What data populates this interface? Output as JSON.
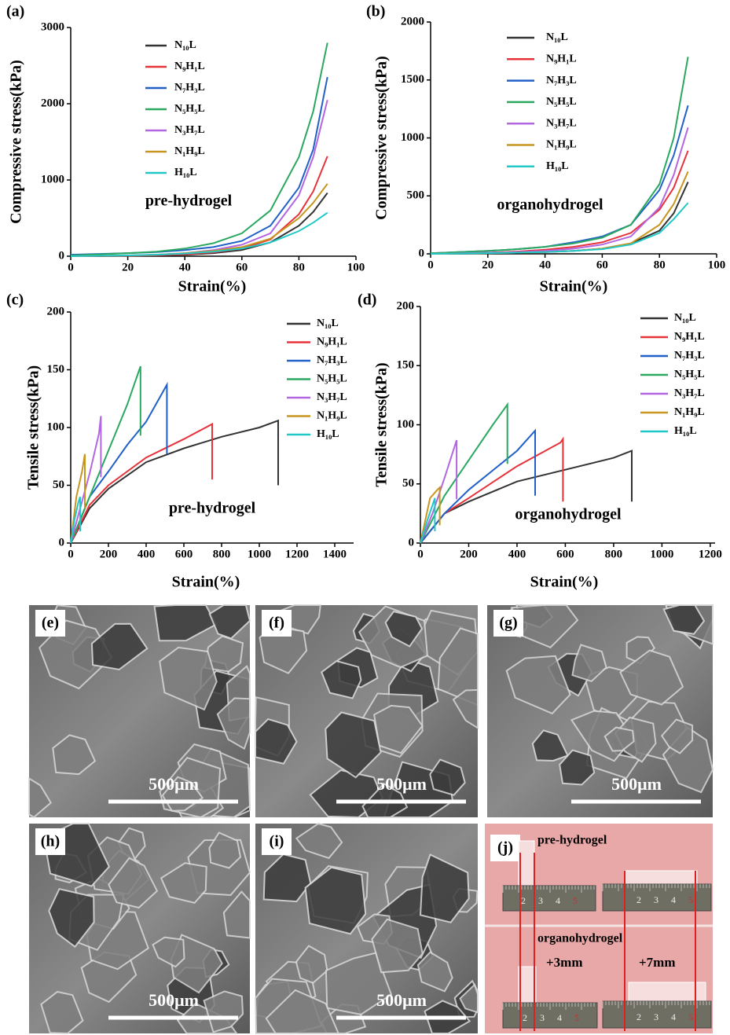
{
  "chart_data": [
    {
      "type": "line",
      "label": "(a)",
      "annotation": "pre-hydrogel",
      "xlabel": "Strain(%)",
      "ylabel": "Compressive stress(kPa)",
      "xlim": [
        0,
        100
      ],
      "ylim": [
        0,
        3000
      ],
      "xticks": [
        0,
        20,
        40,
        60,
        80,
        100
      ],
      "yticks": [
        0,
        1000,
        2000,
        3000
      ],
      "x": [
        0,
        10,
        20,
        30,
        40,
        50,
        60,
        70,
        80,
        85,
        90
      ],
      "series": [
        {
          "name": "N₁₀L",
          "color": "#333333",
          "values": [
            0,
            2,
            5,
            10,
            20,
            40,
            80,
            180,
            400,
            580,
            830
          ]
        },
        {
          "name": "N₉H₁L",
          "color": "#e8323a",
          "values": [
            0,
            3,
            6,
            12,
            25,
            50,
            100,
            220,
            550,
            850,
            1310
          ]
        },
        {
          "name": "N₇H₃L",
          "color": "#2060c8",
          "values": [
            20,
            30,
            40,
            55,
            80,
            120,
            200,
            400,
            900,
            1400,
            2350
          ]
        },
        {
          "name": "N₅H₅L",
          "color": "#2aa860",
          "values": [
            10,
            25,
            40,
            60,
            100,
            170,
            300,
            600,
            1300,
            1900,
            2800
          ]
        },
        {
          "name": "N₃H₇L",
          "color": "#b266e0",
          "values": [
            0,
            5,
            10,
            20,
            40,
            80,
            150,
            300,
            800,
            1300,
            2050
          ]
        },
        {
          "name": "N₁H₉L",
          "color": "#c8961e",
          "values": [
            0,
            5,
            10,
            20,
            40,
            70,
            120,
            230,
            500,
            700,
            950
          ]
        },
        {
          "name": "H₁₀L",
          "color": "#20c8c8",
          "values": [
            0,
            5,
            10,
            20,
            35,
            60,
            100,
            180,
            330,
            440,
            570
          ]
        }
      ]
    },
    {
      "type": "line",
      "label": "(b)",
      "annotation": "organohydrogel",
      "xlabel": "Strain(%)",
      "ylabel": "Compressive stress(kPa)",
      "xlim": [
        0,
        100
      ],
      "ylim": [
        0,
        2000
      ],
      "xticks": [
        0,
        20,
        40,
        60,
        80,
        100
      ],
      "yticks": [
        0,
        500,
        1000,
        1500,
        2000
      ],
      "x": [
        0,
        10,
        20,
        30,
        40,
        50,
        60,
        70,
        80,
        85,
        90
      ],
      "series": [
        {
          "name": "N₁₀L",
          "color": "#333333",
          "values": [
            0,
            2,
            5,
            10,
            15,
            25,
            45,
            90,
            200,
            350,
            620
          ]
        },
        {
          "name": "N₉H₁L",
          "color": "#e8323a",
          "values": [
            0,
            5,
            10,
            20,
            35,
            60,
            100,
            180,
            380,
            570,
            890
          ]
        },
        {
          "name": "N₇H₃L",
          "color": "#2060c8",
          "values": [
            5,
            15,
            25,
            40,
            60,
            100,
            150,
            250,
            550,
            850,
            1280
          ]
        },
        {
          "name": "N₅H₅L",
          "color": "#2aa860",
          "values": [
            5,
            15,
            25,
            40,
            60,
            90,
            140,
            250,
            600,
            1000,
            1700
          ]
        },
        {
          "name": "N₃H₇L",
          "color": "#b266e0",
          "values": [
            0,
            5,
            10,
            15,
            25,
            45,
            80,
            150,
            400,
            680,
            1090
          ]
        },
        {
          "name": "N₁H₉L",
          "color": "#c8961e",
          "values": [
            0,
            3,
            6,
            10,
            15,
            25,
            45,
            90,
            250,
            430,
            710
          ]
        },
        {
          "name": "H₁₀L",
          "color": "#20c8c8",
          "values": [
            0,
            3,
            6,
            10,
            15,
            25,
            40,
            80,
            180,
            300,
            440
          ]
        }
      ]
    },
    {
      "type": "line",
      "label": "(c)",
      "annotation": "pre-hydrogel",
      "xlabel": "Strain(%)",
      "ylabel": "Tensile stress(kPa)",
      "xlim": [
        0,
        1500
      ],
      "ylim": [
        0,
        200
      ],
      "xticks": [
        0,
        200,
        400,
        600,
        800,
        1000,
        1200,
        1400
      ],
      "yticks": [
        0,
        50,
        100,
        150,
        200
      ],
      "series": [
        {
          "name": "N₁₀L",
          "color": "#333333",
          "x": [
            0,
            100,
            200,
            400,
            600,
            800,
            1000,
            1100,
            1100
          ],
          "values": [
            0,
            30,
            47,
            70,
            82,
            92,
            100,
            106,
            50
          ]
        },
        {
          "name": "N₉H₁L",
          "color": "#e8323a",
          "x": [
            0,
            100,
            200,
            400,
            600,
            750,
            750
          ],
          "values": [
            0,
            33,
            50,
            74,
            90,
            103,
            55
          ]
        },
        {
          "name": "N₇H₃L",
          "color": "#2060c8",
          "x": [
            0,
            100,
            200,
            300,
            400,
            510,
            510
          ],
          "values": [
            0,
            40,
            62,
            85,
            105,
            137,
            77
          ]
        },
        {
          "name": "N₅H₅L",
          "color": "#2aa860",
          "x": [
            0,
            100,
            200,
            300,
            370,
            370
          ],
          "values": [
            0,
            40,
            80,
            120,
            153,
            93
          ]
        },
        {
          "name": "N₃H₇L",
          "color": "#b266e0",
          "x": [
            0,
            50,
            100,
            150,
            160,
            160
          ],
          "values": [
            0,
            30,
            60,
            95,
            110,
            57
          ]
        },
        {
          "name": "N₁H₉L",
          "color": "#c8961e",
          "x": [
            0,
            30,
            60,
            75,
            75
          ],
          "values": [
            0,
            40,
            62,
            77,
            30
          ]
        },
        {
          "name": "H₁₀L",
          "color": "#20c8c8",
          "x": [
            0,
            20,
            40,
            50,
            50
          ],
          "values": [
            0,
            20,
            35,
            40,
            10
          ]
        }
      ]
    },
    {
      "type": "line",
      "label": "(d)",
      "annotation": "organohydrogel",
      "xlabel": "Strain(%)",
      "ylabel": "Tensile stress(kPa)",
      "xlim": [
        0,
        1220
      ],
      "ylim": [
        0,
        200
      ],
      "xticks": [
        0,
        200,
        400,
        600,
        800,
        1000,
        1200
      ],
      "yticks": [
        0,
        50,
        100,
        150,
        200
      ],
      "series": [
        {
          "name": "N₁₀L",
          "color": "#333333",
          "x": [
            0,
            100,
            200,
            400,
            600,
            800,
            875,
            875
          ],
          "values": [
            0,
            25,
            35,
            52,
            62,
            72,
            78,
            35
          ]
        },
        {
          "name": "N₉H₁L",
          "color": "#e8323a",
          "x": [
            0,
            100,
            200,
            400,
            580,
            590,
            590
          ],
          "values": [
            0,
            25,
            38,
            65,
            85,
            88,
            35
          ]
        },
        {
          "name": "N₇H₃L",
          "color": "#2060c8",
          "x": [
            0,
            100,
            200,
            400,
            475,
            475
          ],
          "values": [
            0,
            25,
            45,
            78,
            95,
            40
          ]
        },
        {
          "name": "N₅H₅L",
          "color": "#2aa860",
          "x": [
            0,
            100,
            200,
            300,
            360,
            360
          ],
          "values": [
            0,
            40,
            70,
            100,
            117,
            67
          ]
        },
        {
          "name": "N₃H₇L",
          "color": "#b266e0",
          "x": [
            0,
            50,
            100,
            150,
            150
          ],
          "values": [
            0,
            25,
            55,
            87,
            37
          ]
        },
        {
          "name": "N₁H₉L",
          "color": "#c8961e",
          "x": [
            0,
            40,
            70,
            80,
            80
          ],
          "values": [
            0,
            38,
            45,
            47,
            15
          ]
        },
        {
          "name": "H₁₀L",
          "color": "#20c8c8",
          "x": [
            0,
            30,
            55,
            60,
            60
          ],
          "values": [
            0,
            20,
            35,
            38,
            10
          ]
        }
      ]
    }
  ],
  "images": [
    {
      "label": "(e)",
      "scale_bar": "500μm"
    },
    {
      "label": "(f)",
      "scale_bar": "500μm"
    },
    {
      "label": "(g)",
      "scale_bar": "500μm"
    },
    {
      "label": "(h)",
      "scale_bar": "500μm"
    },
    {
      "label": "(i)",
      "scale_bar": "500μm"
    }
  ],
  "photo": {
    "label": "(j)",
    "top": "pre-hydrogel",
    "bottom": "organohydrogel",
    "extensions": [
      "+3mm",
      "+7mm"
    ],
    "ruler_digits": [
      "2",
      "3",
      "4",
      "5"
    ]
  }
}
